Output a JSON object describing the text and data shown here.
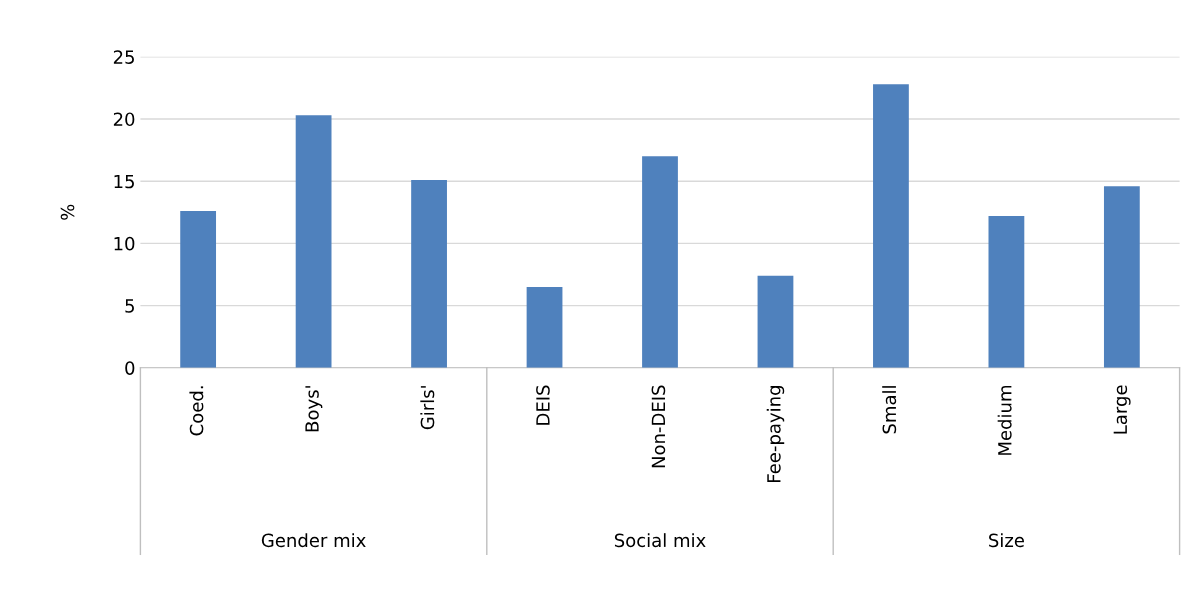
{
  "chart_data": {
    "type": "bar",
    "ylabel": "%",
    "categories": [
      "Coed.",
      "Boys'",
      "Girls'",
      "DEIS",
      "Non-DEIS",
      "Fee-paying",
      "Small",
      "Medium",
      "Large"
    ],
    "values": [
      12.6,
      20.3,
      15.1,
      6.5,
      17.0,
      7.4,
      22.8,
      12.2,
      14.6
    ],
    "color": "#4f81bd",
    "ylim": [
      0,
      25
    ],
    "yticks": [
      0,
      5,
      10,
      15,
      20,
      25
    ],
    "grid": "y",
    "annotations": [
      "Gender mix",
      "Social mix",
      "Size"
    ]
  }
}
